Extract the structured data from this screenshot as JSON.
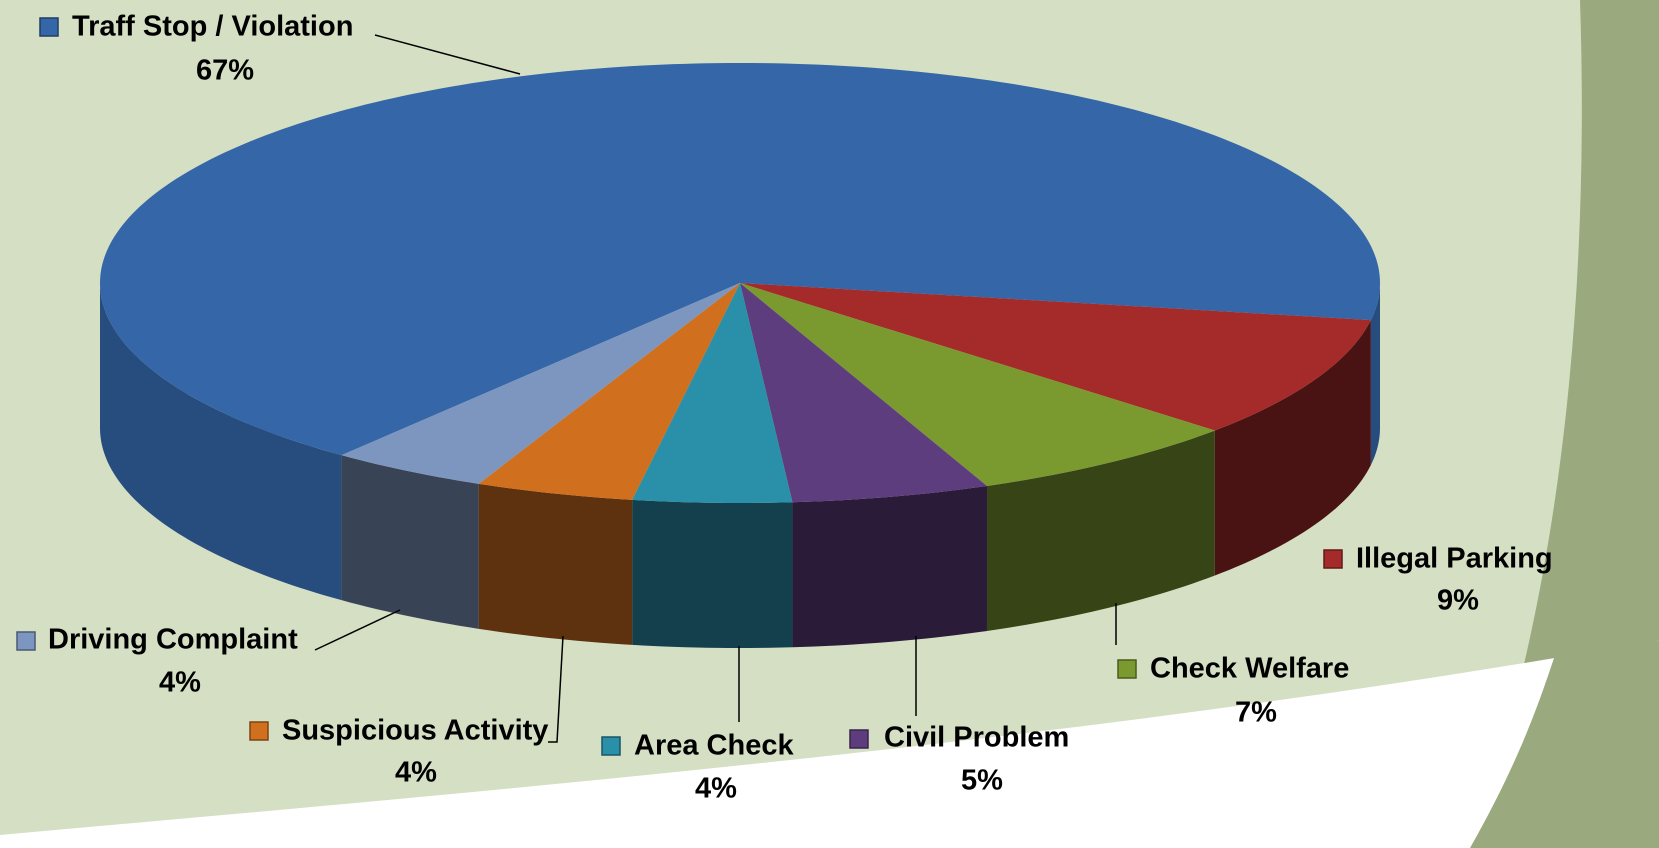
{
  "chart_data": {
    "type": "pie3d",
    "series": [
      {
        "name": "Traff Stop / Violation",
        "value": 67,
        "value_label": "67%",
        "color": "#3466a8"
      },
      {
        "name": "Illegal Parking",
        "value": 9,
        "value_label": "9%",
        "color": "#a52a2a"
      },
      {
        "name": "Check Welfare",
        "value": 7,
        "value_label": "7%",
        "color": "#7a9a30"
      },
      {
        "name": "Civil Problem",
        "value": 5,
        "value_label": "5%",
        "color": "#5e3d7e"
      },
      {
        "name": "Area Check",
        "value": 4,
        "value_label": "4%",
        "color": "#2a8fa8"
      },
      {
        "name": "Suspicious Activity",
        "value": 4,
        "value_label": "4%",
        "color": "#d0701e"
      },
      {
        "name": "Driving Complaint",
        "value": 4,
        "value_label": "4%",
        "color": "#7d96c0"
      }
    ]
  }
}
